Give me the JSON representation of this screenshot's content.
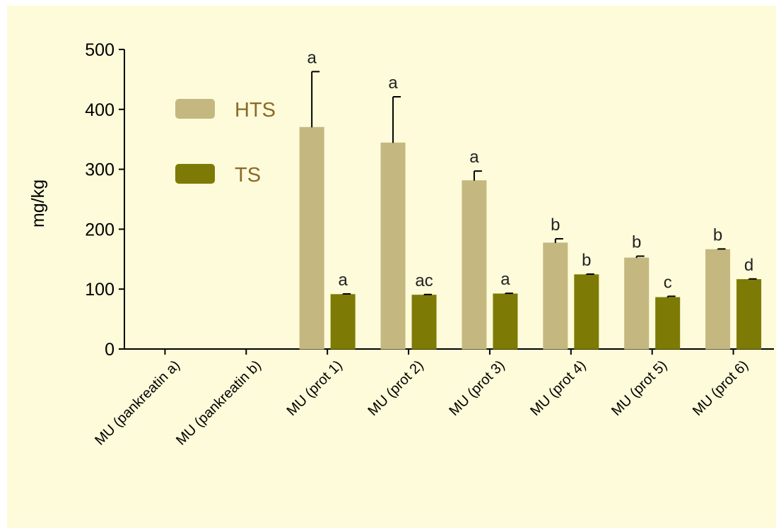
{
  "chart_data": {
    "type": "bar",
    "title": "",
    "xlabel": "",
    "ylabel": "mg/kg",
    "ylim": [
      0,
      500
    ],
    "yticks": [
      0,
      100,
      200,
      300,
      400,
      500
    ],
    "categories": [
      "MU (pankreatin a)",
      "MU (pankreatin b)",
      "MU (prot 1)",
      "MU (prot 2)",
      "MU (prot 3)",
      "MU (prot 4)",
      "MU (prot 5)",
      "MU (prot 6)"
    ],
    "series": [
      {
        "name": "HTS",
        "color": "#c4b880",
        "values": [
          null,
          null,
          370,
          344,
          281,
          177,
          152,
          166
        ],
        "errors": [
          null,
          null,
          93,
          77,
          16,
          7,
          3,
          1
        ],
        "labels": [
          "",
          "",
          "a",
          "a",
          "a",
          "b",
          "b",
          "b"
        ]
      },
      {
        "name": "TS",
        "color": "#7d7a06",
        "values": [
          null,
          null,
          91,
          90,
          92,
          124,
          86,
          116
        ],
        "errors": [
          null,
          null,
          1,
          1,
          1,
          1,
          2,
          1
        ],
        "labels": [
          "",
          "",
          "a",
          "ac",
          "a",
          "b",
          "c",
          "d"
        ]
      }
    ],
    "legend_position": "upper-left",
    "grid": false
  }
}
